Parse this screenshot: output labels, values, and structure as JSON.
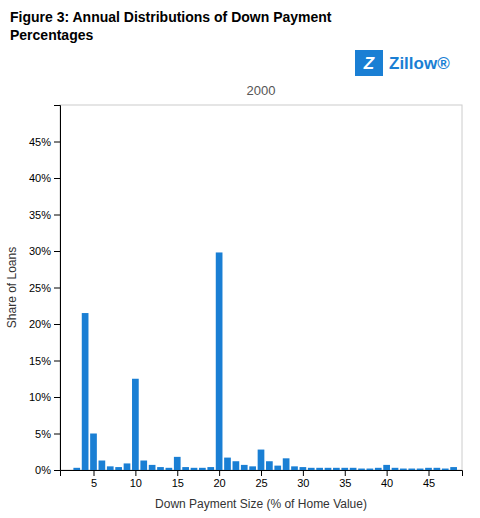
{
  "chart_data": {
    "type": "bar",
    "title": "Figure 3: Annual Distributions of Down Payment\nPercentages",
    "subtitle": "2000",
    "x_label": "Down Payment Size (% of Home Value)",
    "y_label": "Share of Loans",
    "annotations": [
      "Z",
      "Zillow®"
    ],
    "x": [
      3,
      4,
      5,
      6,
      7,
      8,
      9,
      10,
      11,
      12,
      13,
      14,
      15,
      16,
      17,
      18,
      19,
      20,
      21,
      22,
      23,
      24,
      25,
      26,
      27,
      28,
      29,
      30,
      31,
      32,
      33,
      34,
      35,
      36,
      37,
      38,
      39,
      40,
      41,
      42,
      43,
      44,
      45,
      46,
      47,
      48
    ],
    "values": [
      0.003,
      0.215,
      0.05,
      0.013,
      0.005,
      0.004,
      0.009,
      0.125,
      0.013,
      0.007,
      0.004,
      0.003,
      0.018,
      0.004,
      0.003,
      0.003,
      0.004,
      0.298,
      0.017,
      0.012,
      0.007,
      0.005,
      0.028,
      0.012,
      0.006,
      0.016,
      0.005,
      0.004,
      0.003,
      0.003,
      0.003,
      0.003,
      0.003,
      0.003,
      0.002,
      0.002,
      0.003,
      0.007,
      0.003,
      0.002,
      0.002,
      0.002,
      0.003,
      0.003,
      0.002,
      0.004
    ],
    "color": "#1a7fd4",
    "xlim": [
      1,
      49
    ],
    "xticks": [
      5,
      10,
      15,
      20,
      25,
      30,
      35,
      40,
      45
    ],
    "ylim": [
      0,
      0.5
    ],
    "yticks": [
      {
        "value": 0.0,
        "label": "0%"
      },
      {
        "value": 0.05,
        "label": "5%"
      },
      {
        "value": 0.1,
        "label": "10%"
      },
      {
        "value": 0.15,
        "label": "15%"
      },
      {
        "value": 0.2,
        "label": "20%"
      },
      {
        "value": 0.25,
        "label": "25%"
      },
      {
        "value": 0.3,
        "label": "30%"
      },
      {
        "value": 0.35,
        "label": "35%"
      },
      {
        "value": 0.4,
        "label": "40%"
      },
      {
        "value": 0.45,
        "label": "45%"
      }
    ],
    "grid": false
  }
}
